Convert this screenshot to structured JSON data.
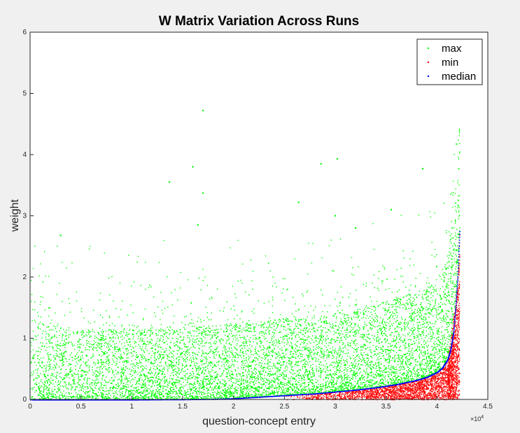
{
  "chart_data": {
    "type": "scatter",
    "title": "W Matrix Variation Across Runs",
    "xlabel": "question-concept entry",
    "ylabel": "weight",
    "xlim": [
      0,
      4.5
    ],
    "ylim": [
      0,
      6
    ],
    "x_scale_label": "×10^4",
    "x_multiplier_base": "×10",
    "x_multiplier_exp": "4",
    "x_ticks": [
      "0",
      "0.5",
      "1",
      "1.5",
      "2",
      "2.5",
      "3",
      "3.5",
      "4",
      "4.5"
    ],
    "y_ticks": [
      "0",
      "1",
      "2",
      "3",
      "4",
      "5",
      "6"
    ],
    "grid": false,
    "legend_position": "top-right",
    "legend": [
      "max",
      "min",
      "median"
    ],
    "series": [
      {
        "name": "max",
        "color": "#00ff00",
        "x": [
          0,
          0.2,
          0.4,
          0.6,
          0.8,
          1.0,
          1.2,
          1.4,
          1.6,
          1.8,
          2.0,
          2.2,
          2.4,
          2.6,
          2.8,
          3.0,
          3.2,
          3.4,
          3.6,
          3.8,
          3.9,
          4.0,
          4.05,
          4.1,
          4.15,
          4.2,
          4.22
        ],
        "y_typical_upper": [
          1.3,
          1.15,
          1.1,
          1.1,
          1.1,
          1.1,
          1.1,
          1.1,
          1.15,
          1.15,
          1.2,
          1.2,
          1.25,
          1.3,
          1.3,
          1.35,
          1.4,
          1.5,
          1.6,
          1.7,
          1.75,
          1.9,
          2.0,
          2.3,
          2.8,
          3.5,
          4.6
        ],
        "notable_outliers": [
          {
            "x": 1.7,
            "y": 4.72
          },
          {
            "x": 1.6,
            "y": 3.8
          },
          {
            "x": 1.37,
            "y": 3.55
          },
          {
            "x": 1.7,
            "y": 3.37
          },
          {
            "x": 2.86,
            "y": 3.85
          },
          {
            "x": 3.02,
            "y": 3.93
          },
          {
            "x": 3.86,
            "y": 3.77
          },
          {
            "x": 2.64,
            "y": 3.22
          },
          {
            "x": 3.55,
            "y": 3.1
          },
          {
            "x": 3.0,
            "y": 3.0
          },
          {
            "x": 3.2,
            "y": 2.8
          },
          {
            "x": 1.65,
            "y": 2.85
          },
          {
            "x": 0.3,
            "y": 2.68
          }
        ]
      },
      {
        "name": "min",
        "color": "#ff0000",
        "x": [
          0,
          1.0,
          2.0,
          2.8,
          3.0,
          3.2,
          3.4,
          3.6,
          3.8,
          4.0,
          4.1,
          4.15,
          4.2,
          4.22
        ],
        "y_typical_upper": [
          0,
          0,
          0,
          0.02,
          0.05,
          0.08,
          0.12,
          0.17,
          0.22,
          0.35,
          0.6,
          1.2,
          1.9,
          2.4
        ]
      },
      {
        "name": "median",
        "color": "#0000ff",
        "x": [
          0,
          1.0,
          1.5,
          1.8,
          2.0,
          2.2,
          2.4,
          2.6,
          2.8,
          3.0,
          3.2,
          3.4,
          3.6,
          3.8,
          3.9,
          4.0,
          4.05,
          4.1,
          4.13,
          4.16,
          4.18,
          4.2,
          4.22
        ],
        "y": [
          0,
          0.0,
          0.005,
          0.01,
          0.02,
          0.04,
          0.06,
          0.08,
          0.1,
          0.13,
          0.16,
          0.2,
          0.25,
          0.32,
          0.37,
          0.45,
          0.52,
          0.65,
          0.8,
          1.1,
          1.5,
          2.0,
          2.75
        ]
      }
    ]
  }
}
